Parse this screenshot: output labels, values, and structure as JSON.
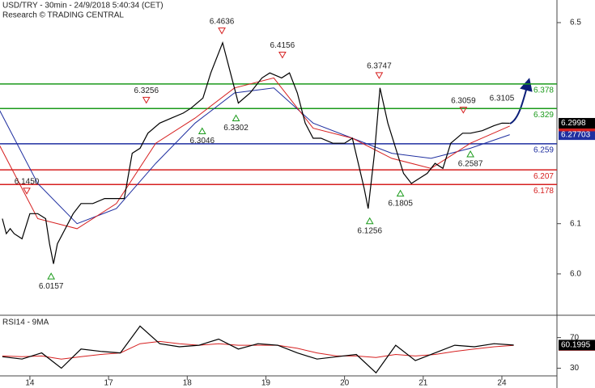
{
  "chart_data": [
    {
      "type": "line",
      "title": "USD/TRY - 30min - 24/9/2018 5:40:34 (CET)",
      "subtitle": "Research © TRADING CENTRAL",
      "xlim": [
        -0.38,
        6.7
      ],
      "ylim": [
        5.921,
        6.545
      ],
      "xticks": [
        {
          "value": 0,
          "label": "14"
        },
        {
          "value": 1,
          "label": "17"
        },
        {
          "value": 2,
          "label": "18"
        },
        {
          "value": 3,
          "label": "19"
        },
        {
          "value": 4,
          "label": "20"
        },
        {
          "value": 5,
          "label": "21"
        },
        {
          "value": 6,
          "label": "24"
        }
      ],
      "yticks": [
        {
          "value": 6,
          "label": "6.0"
        },
        6.1,
        6.5
      ],
      "series": [
        {
          "color": "#000000",
          "x": [
            -0.35,
            -0.3,
            -0.25,
            -0.2,
            -0.1,
            0,
            0.1,
            0.2,
            0.25,
            0.3,
            0.35,
            0.45,
            0.55,
            0.65,
            0.8,
            0.95,
            1.05,
            1.2,
            1.3,
            1.4,
            1.5,
            1.65,
            1.8,
            1.95,
            2.05,
            2.2,
            2.3,
            2.45,
            2.55,
            2.65,
            2.8,
            2.95,
            3.05,
            3.2,
            3.3,
            3.4,
            3.5,
            3.6,
            3.7,
            3.85,
            4,
            4.1,
            4.25,
            4.3,
            4.38,
            4.45,
            4.55,
            4.65,
            4.75,
            4.85,
            4.95,
            5.05,
            5.15,
            5.25,
            5.35,
            5.5,
            5.6,
            5.75,
            5.9,
            6,
            6.1
          ],
          "values": [
            6.11,
            6.08,
            6.09,
            6.08,
            6.07,
            6.12,
            6.12,
            6.11,
            6.06,
            6.02,
            6.06,
            6.09,
            6.12,
            6.14,
            6.14,
            6.15,
            6.15,
            6.15,
            6.24,
            6.25,
            6.28,
            6.3,
            6.31,
            6.32,
            6.33,
            6.35,
            6.4,
            6.46,
            6.4,
            6.34,
            6.36,
            6.39,
            6.4,
            6.39,
            6.4,
            6.36,
            6.3,
            6.27,
            6.27,
            6.26,
            6.26,
            6.27,
            6.17,
            6.13,
            6.24,
            6.37,
            6.3,
            6.25,
            6.2,
            6.18,
            6.19,
            6.2,
            6.22,
            6.21,
            6.26,
            6.28,
            6.28,
            6.285,
            6.295,
            6.3,
            6.2998
          ]
        },
        {
          "color": "#d62020",
          "x": [
            -0.4,
            0.1,
            0.6,
            1.1,
            1.6,
            2.1,
            2.6,
            3.1,
            3.6,
            4.1,
            4.6,
            5.1,
            5.6,
            6.1
          ],
          "values": [
            6.26,
            6.11,
            6.09,
            6.14,
            6.26,
            6.31,
            6.37,
            6.39,
            6.29,
            6.27,
            6.23,
            6.21,
            6.26,
            6.29423
          ]
        },
        {
          "color": "#1f2fa0",
          "x": [
            -0.4,
            0.1,
            0.6,
            1.1,
            1.6,
            2.1,
            2.6,
            3.1,
            3.6,
            4.1,
            4.6,
            5.1,
            5.6,
            6.1
          ],
          "values": [
            6.33,
            6.18,
            6.1,
            6.13,
            6.22,
            6.3,
            6.36,
            6.37,
            6.3,
            6.27,
            6.24,
            6.23,
            6.25,
            6.27703
          ]
        }
      ],
      "levels": [
        {
          "value": 6.378,
          "color": "#1a9a1a"
        },
        {
          "value": 6.329,
          "color": "#1a9a1a"
        },
        {
          "value": 6.259,
          "color": "#1f2fa0"
        },
        {
          "value": 6.207,
          "color": "#d62020"
        },
        {
          "value": 6.178,
          "color": "#d62020"
        }
      ],
      "annotations": [
        {
          "x": -0.04,
          "value": 6.145,
          "label": "6.1450",
          "kind": "high"
        },
        {
          "x": 0.27,
          "value": 6.0157,
          "label": "6.0157",
          "kind": "low"
        },
        {
          "x": 1.48,
          "value": 6.3256,
          "label": "6.3256",
          "kind": "high"
        },
        {
          "x": 2.19,
          "value": 6.3046,
          "label": "6.3046",
          "kind": "low"
        },
        {
          "x": 2.44,
          "value": 6.4636,
          "label": "6.4636",
          "kind": "high"
        },
        {
          "x": 2.62,
          "value": 6.3302,
          "label": "6.3302",
          "kind": "low"
        },
        {
          "x": 3.21,
          "value": 6.4156,
          "label": "6.4156",
          "kind": "high"
        },
        {
          "x": 4.44,
          "value": 6.3747,
          "label": "6.3747",
          "kind": "high"
        },
        {
          "x": 4.32,
          "value": 6.1256,
          "label": "6.1256",
          "kind": "low"
        },
        {
          "x": 4.71,
          "value": 6.1805,
          "label": "6.1805",
          "kind": "low"
        },
        {
          "x": 5.51,
          "value": 6.3059,
          "label": "6.3059",
          "kind": "high"
        },
        {
          "x": 5.6,
          "value": 6.2587,
          "label": "6.2587",
          "kind": "low"
        },
        {
          "x": 6.0,
          "value": 6.3105,
          "label": "6.3105",
          "kind": "text"
        }
      ]
    },
    {
      "type": "line",
      "title": "RSI14 - 9MA",
      "xlim": [
        -0.38,
        6.7
      ],
      "ylim": [
        20,
        96
      ],
      "yticks": [
        30,
        70
      ],
      "series": [
        {
          "color": "#000000",
          "x": [
            -0.35,
            -0.1,
            0.15,
            0.4,
            0.65,
            0.9,
            1.15,
            1.4,
            1.65,
            1.9,
            2.15,
            2.4,
            2.65,
            2.9,
            3.15,
            3.4,
            3.65,
            3.9,
            4.15,
            4.4,
            4.65,
            4.9,
            5.15,
            5.4,
            5.65,
            5.9,
            6.15
          ],
          "values": [
            45,
            42,
            50,
            30,
            55,
            52,
            50,
            85,
            62,
            58,
            60,
            68,
            55,
            62,
            60,
            50,
            42,
            45,
            48,
            24,
            60,
            40,
            50,
            60,
            58,
            62,
            60.1995
          ]
        },
        {
          "color": "#d62020",
          "x": [
            -0.35,
            -0.1,
            0.15,
            0.4,
            0.65,
            0.9,
            1.15,
            1.4,
            1.65,
            1.9,
            2.15,
            2.4,
            2.65,
            2.9,
            3.15,
            3.4,
            3.65,
            3.9,
            4.15,
            4.4,
            4.65,
            4.9,
            5.15,
            5.4,
            5.65,
            5.9,
            6.15
          ],
          "values": [
            46,
            45,
            46,
            42,
            45,
            48,
            50,
            62,
            65,
            62,
            60,
            62,
            60,
            60,
            60,
            56,
            50,
            46,
            46,
            44,
            48,
            46,
            48,
            52,
            55,
            58,
            59.7682
          ]
        }
      ]
    }
  ]
}
